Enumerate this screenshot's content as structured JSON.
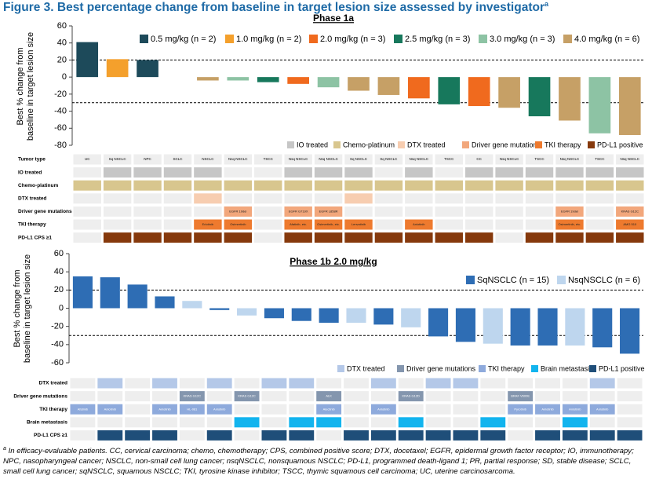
{
  "figure_title": "Figure 3. Best percentage change from baseline in target lesion size assessed by investigator",
  "title_marker": "a",
  "footnote_marker": "a",
  "footnote": "In efficacy-evaluable patients. CC, cervical carcinoma; chemo, chemotherapy; CPS, combined positive score; DTX, docetaxel; EGFR, epidermal growth factor receptor; IO, immunotherapy; NPC, nasopharyngeal cancer; NSCLC, non-small cell lung cancer; nsqNSCLC, nonsquamous NSCLC; PD-L1, programmed death-ligand 1; PR, partial response; SD, stable disease; SCLC, small cell lung cancer; sqNSCLC, squamous NSCLC; TKI, tyrosine kinase inhibitor; TSCC, thymic squamous cell carcinoma; UC, uterine carcinosarcoma.",
  "chart_data": [
    {
      "type": "bar",
      "title": "Phase 1a",
      "ylabel": "Best % change from baseline in target lesion size",
      "ylim": [
        -80,
        60
      ],
      "yticks": [
        60,
        40,
        20,
        0,
        -20,
        -40,
        -60,
        -80
      ],
      "reference_lines": [
        20,
        -30
      ],
      "categories": [
        "UC",
        "Sq NSCLC",
        "NPC",
        "SCLC",
        "NSCLC",
        "Nsq NSCLC",
        "TSCC",
        "Nsq NSCLC",
        "Nsq NSCLC",
        "Sq NSCLC",
        "Sq NSCLC",
        "Nsq NSCLC",
        "TSCC",
        "CC",
        "Nsq NSCLC",
        "TSCC",
        "Nsq NSCLC",
        "TSCC",
        "Nsq NSCLC"
      ],
      "series": [
        {
          "name": "0.5 mg/kg (n = 2)",
          "color": "#1d4a5a",
          "values": [
            41,
            null,
            20,
            null,
            null,
            null,
            null,
            null,
            null,
            null,
            null,
            null,
            null,
            null,
            null,
            null,
            null,
            null,
            null
          ]
        },
        {
          "name": "1.0 mg/kg (n = 2)",
          "color": "#f4a02c",
          "values": [
            null,
            21,
            null,
            0,
            null,
            null,
            null,
            null,
            null,
            null,
            null,
            null,
            null,
            null,
            null,
            null,
            null,
            null,
            null
          ]
        },
        {
          "name": "2.0 mg/kg (n = 3)",
          "color": "#f06a1e",
          "values": [
            null,
            null,
            null,
            null,
            null,
            null,
            null,
            -8,
            null,
            null,
            null,
            -25,
            null,
            -34,
            null,
            null,
            null,
            null,
            null
          ]
        },
        {
          "name": "2.5 mg/kg (n = 3)",
          "color": "#17785c",
          "values": [
            null,
            null,
            null,
            null,
            null,
            null,
            -6,
            null,
            null,
            null,
            null,
            null,
            -32,
            null,
            null,
            -46,
            null,
            null,
            null
          ]
        },
        {
          "name": "3.0 mg/kg (n = 3)",
          "color": "#8dc3a4",
          "values": [
            null,
            null,
            null,
            null,
            null,
            -4,
            null,
            null,
            -12,
            null,
            null,
            null,
            null,
            null,
            null,
            null,
            null,
            -66,
            null
          ]
        },
        {
          "name": "4.0 mg/kg (n = 6)",
          "color": "#c6a066",
          "values": [
            null,
            null,
            null,
            null,
            -4,
            null,
            null,
            null,
            null,
            -16,
            -21,
            null,
            null,
            null,
            -36,
            null,
            -51,
            null,
            -68
          ]
        }
      ],
      "table": {
        "header_label": "Tumor type",
        "legend": [
          {
            "name": "IO treated",
            "color": "#c6c6c6"
          },
          {
            "name": "Chemo-platinum",
            "color": "#d8c68e"
          },
          {
            "name": "DTX treated",
            "color": "#f7cdb0"
          },
          {
            "name": "Driver gene mutations",
            "color": "#f2a77c"
          },
          {
            "name": "TKI therapy",
            "color": "#ee7a2e"
          },
          {
            "name": "PD-L1 positive",
            "color": "#86390c"
          }
        ],
        "rows": [
          {
            "label": "IO treated",
            "color": "#c6c6c6",
            "cells": [
              false,
              true,
              true,
              true,
              true,
              false,
              false,
              true,
              true,
              true,
              false,
              true,
              false,
              true,
              true,
              true,
              true,
              true,
              true
            ]
          },
          {
            "label": "Chemo-platinum",
            "color": "#d8c68e",
            "cells": [
              true,
              true,
              true,
              true,
              true,
              true,
              true,
              true,
              true,
              true,
              true,
              true,
              true,
              true,
              true,
              true,
              true,
              true,
              true
            ]
          },
          {
            "label": "DTX treated",
            "color": "#f7cdb0",
            "cells": [
              false,
              false,
              false,
              false,
              true,
              false,
              false,
              false,
              false,
              true,
              false,
              false,
              false,
              false,
              false,
              false,
              false,
              false,
              false
            ]
          },
          {
            "label": "Driver gene mutations",
            "color": "#f2a77c",
            "cells": [
              false,
              false,
              false,
              false,
              false,
              "EGFR 19del",
              false,
              "EGFR G719X",
              "EGFR L858R",
              false,
              false,
              false,
              false,
              false,
              false,
              false,
              "EGFR 19del",
              false,
              "KRAS G12C"
            ]
          },
          {
            "label": "TKI therapy",
            "color": "#ee7a2e",
            "cells": [
              false,
              false,
              false,
              false,
              "Erlotinib",
              "Osimertinib",
              false,
              "Afatinib, etc.",
              "Osimertinib, etc.",
              "Lenvatinib",
              false,
              "Anlotinib",
              false,
              false,
              false,
              false,
              "Osimertinib, etc.",
              false,
              "AMG 510"
            ]
          },
          {
            "label": "PD-L1 CPS ≥1",
            "color": "#86390c",
            "cells": [
              false,
              true,
              true,
              true,
              true,
              true,
              false,
              true,
              true,
              true,
              true,
              true,
              true,
              true,
              false,
              true,
              true,
              true,
              true
            ]
          }
        ]
      }
    },
    {
      "type": "bar",
      "title": "Phase 1b 2.0 mg/kg",
      "ylabel": "Best % change from baseline in target lesion size",
      "ylim": [
        -60,
        60
      ],
      "yticks": [
        60,
        40,
        20,
        0,
        -20,
        -40,
        -60
      ],
      "reference_lines": [
        20,
        -30
      ],
      "series": [
        {
          "name": "SqNSCLC (n = 15)",
          "color": "#2e6db4",
          "values": [
            35,
            34,
            26,
            13,
            null,
            -2,
            null,
            -11,
            -14,
            -16,
            null,
            -18,
            null,
            -31,
            -37,
            null,
            -41,
            -41,
            null,
            -43,
            -50
          ]
        },
        {
          "name": "NsqNSCLC (n = 6)",
          "color": "#bed6ee",
          "values": [
            null,
            null,
            null,
            null,
            8,
            null,
            -8,
            null,
            null,
            null,
            -16,
            null,
            -21,
            null,
            null,
            -39,
            null,
            null,
            -41,
            null,
            null
          ]
        }
      ],
      "table": {
        "legend": [
          {
            "name": "DTX treated",
            "color": "#b4c8e8"
          },
          {
            "name": "Driver gene mutations",
            "color": "#8496ae"
          },
          {
            "name": "TKI therapy",
            "color": "#8eaadc"
          },
          {
            "name": "Brain metastasis",
            "color": "#12b4ee"
          },
          {
            "name": "PD-L1 positive",
            "color": "#1f4e79"
          }
        ],
        "rows": [
          {
            "label": "DTX treated",
            "color": "#b4c8e8",
            "cells": [
              false,
              true,
              false,
              true,
              false,
              true,
              false,
              true,
              true,
              false,
              false,
              true,
              false,
              true,
              true,
              false,
              false,
              false,
              false,
              true,
              false
            ]
          },
          {
            "label": "Driver gene mutations",
            "color": "#8496ae",
            "cells": [
              false,
              false,
              false,
              false,
              "KRAS G12C",
              false,
              "KRAS G12C",
              false,
              false,
              "ALK",
              false,
              false,
              "KRAS G12D",
              false,
              false,
              false,
              "BRAF V600E",
              false,
              false,
              false,
              false
            ]
          },
          {
            "label": "TKI therapy",
            "color": "#8eaadc",
            "cells": [
              "Afatinib",
              "Anlotinib",
              false,
              "Anlotinib",
              "HL-081",
              "Anlotinib",
              false,
              false,
              false,
              "Alectinib",
              false,
              "Anlotinib",
              false,
              false,
              false,
              false,
              "Pyrotinib",
              "Anlotinib",
              "Anlotinib",
              "Anlotinib",
              false
            ]
          },
          {
            "label": "Brain metastasis",
            "color": "#12b4ee",
            "cells": [
              false,
              false,
              false,
              false,
              false,
              false,
              true,
              false,
              true,
              true,
              false,
              false,
              true,
              false,
              false,
              true,
              false,
              false,
              true,
              false,
              false
            ]
          },
          {
            "label": "PD-L1 CPS ≥1",
            "color": "#1f4e79",
            "cells": [
              false,
              true,
              true,
              true,
              false,
              true,
              false,
              true,
              true,
              false,
              true,
              true,
              true,
              true,
              true,
              true,
              false,
              true,
              true,
              true,
              true
            ]
          }
        ]
      }
    }
  ]
}
